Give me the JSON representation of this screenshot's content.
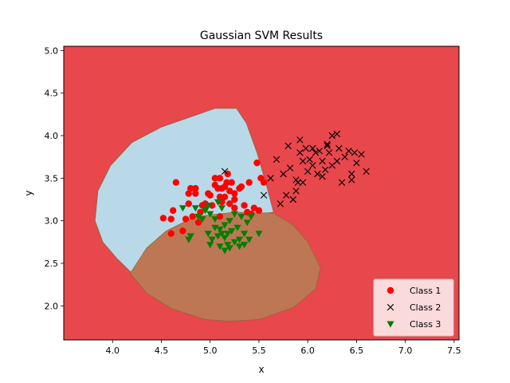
{
  "chart_data": {
    "type": "scatter",
    "title": "Gaussian SVM Results",
    "xlabel": "x",
    "ylabel": "y",
    "xlim": [
      3.5,
      7.55
    ],
    "ylim": [
      1.6,
      5.05
    ],
    "xticks": [
      4.0,
      4.5,
      5.0,
      5.5,
      6.0,
      6.5,
      7.0,
      7.5
    ],
    "yticks": [
      2.0,
      2.5,
      3.0,
      3.5,
      4.0,
      4.5,
      5.0
    ],
    "xtick_labels": [
      "4.0",
      "4.5",
      "5.0",
      "5.5",
      "6.0",
      "6.5",
      "7.0",
      "7.5"
    ],
    "ytick_labels": [
      "2.0",
      "2.5",
      "3.0",
      "3.5",
      "4.0",
      "4.5",
      "5.0"
    ],
    "grid": false,
    "legend_position": "bottom-right",
    "background_region_color": "#e8474c",
    "regions": [
      {
        "color": "#b9d8e8",
        "polygon": [
          [
            3.82,
            3.0
          ],
          [
            3.85,
            3.35
          ],
          [
            3.98,
            3.65
          ],
          [
            4.2,
            3.92
          ],
          [
            4.5,
            4.1
          ],
          [
            4.8,
            4.22
          ],
          [
            5.05,
            4.32
          ],
          [
            5.27,
            4.32
          ],
          [
            5.37,
            4.15
          ],
          [
            5.48,
            3.8
          ],
          [
            5.57,
            3.45
          ],
          [
            5.65,
            3.1
          ],
          [
            5.0,
            3.02
          ],
          [
            4.6,
            2.85
          ],
          [
            4.4,
            2.6
          ],
          [
            4.22,
            2.36
          ],
          [
            4.05,
            2.55
          ],
          [
            3.9,
            2.75
          ]
        ]
      },
      {
        "color": "#be7755",
        "polygon": [
          [
            4.18,
            2.38
          ],
          [
            4.35,
            2.68
          ],
          [
            4.55,
            2.88
          ],
          [
            4.85,
            3.05
          ],
          [
            5.25,
            3.1
          ],
          [
            5.65,
            3.09
          ],
          [
            5.85,
            2.95
          ],
          [
            6.0,
            2.75
          ],
          [
            6.13,
            2.45
          ],
          [
            6.08,
            2.2
          ],
          [
            5.85,
            1.98
          ],
          [
            5.5,
            1.84
          ],
          [
            5.2,
            1.82
          ],
          [
            4.95,
            1.84
          ],
          [
            4.6,
            1.97
          ],
          [
            4.35,
            2.15
          ]
        ]
      }
    ],
    "series": [
      {
        "name": "Class 1",
        "marker": "circle",
        "color": "#ff0000",
        "points": [
          [
            4.52,
            3.03
          ],
          [
            4.62,
            3.12
          ],
          [
            4.65,
            3.45
          ],
          [
            4.72,
            2.88
          ],
          [
            4.6,
            2.85
          ],
          [
            4.6,
            3.02
          ],
          [
            4.78,
            3.32
          ],
          [
            4.8,
            3.38
          ],
          [
            4.85,
            3.38
          ],
          [
            4.82,
            3.05
          ],
          [
            4.85,
            3.32
          ],
          [
            4.88,
            2.98
          ],
          [
            4.9,
            3.1
          ],
          [
            4.92,
            3.18
          ],
          [
            4.95,
            3.2
          ],
          [
            4.98,
            3.32
          ],
          [
            5.0,
            3.3
          ],
          [
            5.02,
            3.18
          ],
          [
            5.05,
            3.5
          ],
          [
            5.05,
            3.42
          ],
          [
            5.08,
            3.38
          ],
          [
            5.1,
            3.05
          ],
          [
            5.1,
            3.28
          ],
          [
            5.12,
            3.22
          ],
          [
            5.12,
            3.38
          ],
          [
            5.15,
            3.4
          ],
          [
            5.15,
            3.28
          ],
          [
            5.17,
            3.45
          ],
          [
            5.2,
            3.2
          ],
          [
            5.2,
            3.35
          ],
          [
            5.22,
            3.45
          ],
          [
            5.25,
            3.32
          ],
          [
            5.25,
            3.25
          ],
          [
            5.3,
            3.38
          ],
          [
            5.32,
            3.4
          ],
          [
            5.38,
            3.1
          ],
          [
            5.4,
            3.45
          ],
          [
            5.45,
            3.15
          ],
          [
            5.48,
            3.68
          ],
          [
            5.5,
            3.12
          ],
          [
            5.52,
            3.5
          ],
          [
            5.55,
            3.45
          ],
          [
            5.42,
            3.08
          ],
          [
            5.18,
            3.55
          ],
          [
            5.1,
            3.5
          ],
          [
            4.78,
            3.2
          ],
          [
            4.95,
            3.15
          ],
          [
            5.25,
            3.15
          ],
          [
            5.35,
            3.18
          ],
          [
            4.75,
            3.02
          ]
        ]
      },
      {
        "name": "Class 2",
        "marker": "x",
        "color": "#000000",
        "points": [
          [
            5.15,
            3.58
          ],
          [
            5.55,
            3.3
          ],
          [
            5.62,
            3.5
          ],
          [
            5.68,
            3.72
          ],
          [
            5.75,
            3.55
          ],
          [
            5.78,
            3.3
          ],
          [
            5.8,
            3.88
          ],
          [
            5.82,
            3.62
          ],
          [
            5.85,
            3.25
          ],
          [
            5.88,
            3.48
          ],
          [
            5.9,
            3.45
          ],
          [
            5.92,
            3.8
          ],
          [
            5.95,
            3.7
          ],
          [
            5.95,
            3.45
          ],
          [
            5.98,
            3.85
          ],
          [
            6.0,
            3.58
          ],
          [
            6.02,
            3.72
          ],
          [
            6.05,
            3.65
          ],
          [
            6.05,
            3.85
          ],
          [
            6.1,
            3.55
          ],
          [
            6.12,
            3.82
          ],
          [
            6.15,
            3.7
          ],
          [
            6.18,
            3.6
          ],
          [
            6.2,
            3.9
          ],
          [
            6.22,
            3.8
          ],
          [
            6.25,
            3.65
          ],
          [
            6.25,
            4.0
          ],
          [
            6.3,
            3.7
          ],
          [
            6.3,
            4.02
          ],
          [
            6.32,
            3.85
          ],
          [
            6.35,
            3.45
          ],
          [
            6.38,
            3.75
          ],
          [
            6.45,
            3.48
          ],
          [
            6.45,
            3.55
          ],
          [
            6.48,
            3.8
          ],
          [
            6.5,
            3.68
          ],
          [
            6.55,
            3.78
          ],
          [
            6.6,
            3.58
          ],
          [
            6.15,
            3.52
          ],
          [
            5.88,
            3.35
          ],
          [
            5.92,
            3.95
          ],
          [
            6.08,
            3.8
          ],
          [
            6.2,
            3.88
          ],
          [
            6.42,
            3.82
          ],
          [
            5.72,
            3.2
          ]
        ]
      },
      {
        "name": "Class 3",
        "marker": "triangle-down",
        "color": "#007f00",
        "points": [
          [
            4.72,
            3.15
          ],
          [
            4.78,
            2.78
          ],
          [
            4.8,
            2.82
          ],
          [
            4.85,
            3.15
          ],
          [
            4.88,
            3.05
          ],
          [
            4.92,
            3.02
          ],
          [
            4.95,
            3.12
          ],
          [
            4.98,
            2.85
          ],
          [
            5.0,
            3.08
          ],
          [
            5.0,
            2.72
          ],
          [
            5.02,
            2.78
          ],
          [
            5.05,
            2.92
          ],
          [
            5.05,
            3.02
          ],
          [
            5.08,
            2.82
          ],
          [
            5.1,
            2.9
          ],
          [
            5.1,
            2.7
          ],
          [
            5.12,
            3.15
          ],
          [
            5.15,
            2.95
          ],
          [
            5.15,
            2.8
          ],
          [
            5.18,
            2.72
          ],
          [
            5.2,
            2.68
          ],
          [
            5.2,
            3.0
          ],
          [
            5.22,
            2.88
          ],
          [
            5.25,
            2.75
          ],
          [
            5.25,
            3.08
          ],
          [
            5.28,
            2.92
          ],
          [
            5.3,
            2.7
          ],
          [
            5.32,
            3.05
          ],
          [
            5.35,
            2.85
          ],
          [
            5.35,
            2.72
          ],
          [
            5.38,
            2.98
          ],
          [
            5.4,
            2.78
          ],
          [
            5.42,
            3.05
          ],
          [
            5.5,
            2.85
          ],
          [
            5.08,
            3.22
          ],
          [
            5.12,
            2.85
          ],
          [
            5.15,
            2.65
          ],
          [
            5.3,
            2.78
          ],
          [
            4.98,
            3.18
          ],
          [
            5.18,
            2.85
          ]
        ]
      }
    ]
  }
}
